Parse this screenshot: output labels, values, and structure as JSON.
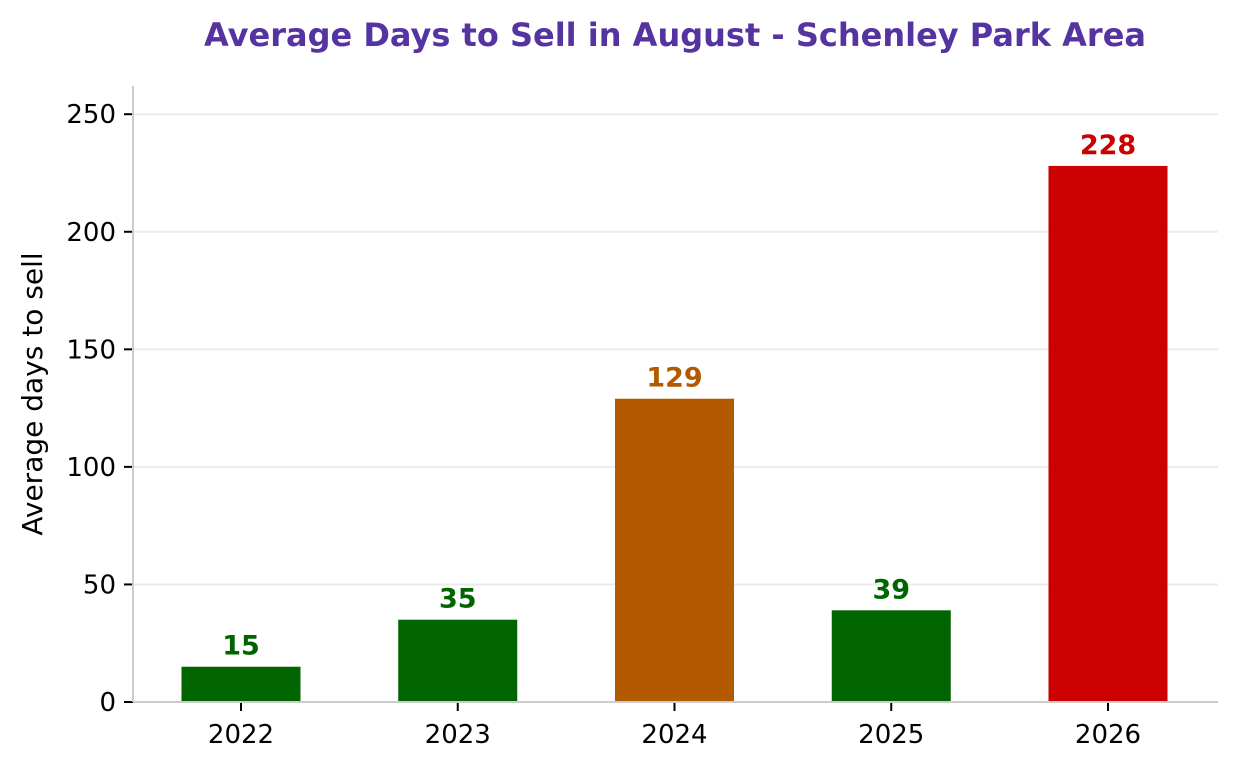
{
  "chart_data": {
    "type": "bar",
    "title": "Average Days to Sell in August - Schenley Park Area",
    "xlabel": "",
    "ylabel": "Average days to sell",
    "categories": [
      "2022",
      "2023",
      "2024",
      "2025",
      "2026"
    ],
    "values": [
      15,
      35,
      129,
      39,
      228
    ],
    "bar_colors": [
      "#006400",
      "#006400",
      "#b35900",
      "#006400",
      "#cc0000"
    ],
    "value_labels": [
      "15",
      "35",
      "129",
      "39",
      "228"
    ],
    "ylim": [
      0,
      262
    ],
    "yticks": [
      0,
      50,
      100,
      150,
      200,
      250
    ],
    "ytick_labels": [
      "0",
      "50",
      "100",
      "150",
      "200",
      "250"
    ],
    "grid": "horizontal",
    "legend": "none"
  },
  "colors": {
    "title": "#5533a0",
    "grid": "#ebebeb",
    "axis": "#cccccc",
    "tick": "#000000"
  }
}
